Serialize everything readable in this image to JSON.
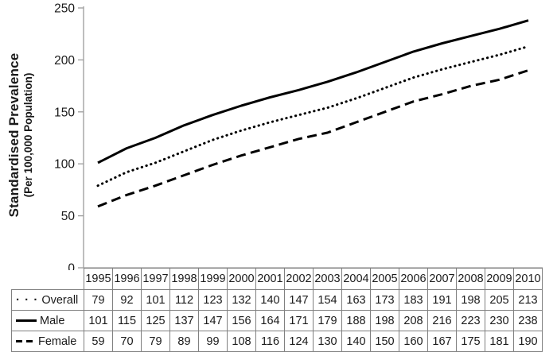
{
  "colors": {
    "background": "#ffffff",
    "text": "#1a1a1a",
    "line": "#000000",
    "axis": "#9c9c9c",
    "table_border": "#808080"
  },
  "chart_data": {
    "type": "line",
    "title": "",
    "xlabel": "",
    "ylabel": "Standardised Prevalence",
    "ylabel2": "(Per 100,000 Population)",
    "ylim": [
      0,
      250
    ],
    "yticks": [
      0,
      50,
      100,
      150,
      200,
      250
    ],
    "grid": false,
    "legend_position": "table-left-column",
    "x": [
      "1995",
      "1996",
      "1997",
      "1998",
      "1999",
      "2000",
      "2001",
      "2002",
      "2003",
      "2004",
      "2005",
      "2006",
      "2007",
      "2008",
      "2009",
      "2010"
    ],
    "series": [
      {
        "name": "Overall",
        "style": "dotted",
        "values": [
          79,
          92,
          101,
          112,
          123,
          132,
          140,
          147,
          154,
          163,
          173,
          183,
          191,
          198,
          205,
          213
        ]
      },
      {
        "name": "Male",
        "style": "solid",
        "values": [
          101,
          115,
          125,
          137,
          147,
          156,
          164,
          171,
          179,
          188,
          198,
          208,
          216,
          223,
          230,
          238
        ]
      },
      {
        "name": "Female",
        "style": "dashed",
        "values": [
          59,
          70,
          79,
          89,
          99,
          108,
          116,
          124,
          130,
          140,
          150,
          160,
          167,
          175,
          181,
          190
        ]
      }
    ]
  }
}
